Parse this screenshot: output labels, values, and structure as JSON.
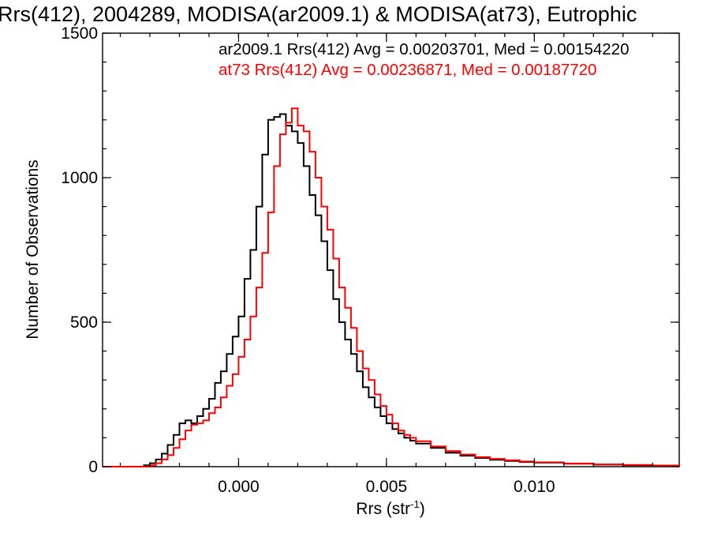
{
  "chart_data": {
    "type": "line",
    "title": "Rrs(412), 2004289, MODISA(ar2009.1) & MODISA(at73), Eutrophic",
    "xlabel": "Rrs (str",
    "xlabel_sup": "-1",
    "xlabel_suffix": ")",
    "ylabel": "Number of Observations",
    "xlim": [
      -0.0046,
      0.0149
    ],
    "ylim": [
      0,
      1500
    ],
    "x_ticks": [
      0.0,
      0.005,
      0.01
    ],
    "x_tick_labels": [
      "0.000",
      "0.005",
      "0.010"
    ],
    "x_minor_step": 0.001,
    "y_ticks": [
      0,
      500,
      1000,
      1500
    ],
    "y_tick_labels": [
      "0",
      "500",
      "1000",
      "1500"
    ],
    "y_minor_step": 100,
    "grid": false,
    "step": true,
    "annotations": [
      {
        "text": "ar2009.1 Rrs(412) Avg = 0.00203701, Med = 0.00154220",
        "color": "#000000"
      },
      {
        "text": "at73 Rrs(412) Avg = 0.00236871, Med = 0.00187720",
        "color": "#ff0000"
      }
    ],
    "series": [
      {
        "color": "#000000",
        "points": [
          [
            -0.0046,
            0
          ],
          [
            -0.0035,
            0
          ],
          [
            -0.0032,
            5
          ],
          [
            -0.003,
            12
          ],
          [
            -0.0028,
            25
          ],
          [
            -0.0026,
            45
          ],
          [
            -0.0024,
            75
          ],
          [
            -0.0022,
            110
          ],
          [
            -0.002,
            150
          ],
          [
            -0.0018,
            160
          ],
          [
            -0.0016,
            150
          ],
          [
            -0.0014,
            175
          ],
          [
            -0.0012,
            200
          ],
          [
            -0.001,
            235
          ],
          [
            -0.0008,
            290
          ],
          [
            -0.0006,
            330
          ],
          [
            -0.0004,
            390
          ],
          [
            -0.0002,
            450
          ],
          [
            0.0,
            520
          ],
          [
            0.0002,
            650
          ],
          [
            0.0004,
            750
          ],
          [
            0.0006,
            900
          ],
          [
            0.0008,
            1080
          ],
          [
            0.001,
            1200
          ],
          [
            0.0012,
            1210
          ],
          [
            0.0014,
            1220
          ],
          [
            0.0016,
            1180
          ],
          [
            0.0018,
            1160
          ],
          [
            0.002,
            1120
          ],
          [
            0.0022,
            1040
          ],
          [
            0.0024,
            940
          ],
          [
            0.0026,
            870
          ],
          [
            0.0028,
            780
          ],
          [
            0.003,
            680
          ],
          [
            0.0032,
            580
          ],
          [
            0.0034,
            500
          ],
          [
            0.0036,
            440
          ],
          [
            0.0038,
            390
          ],
          [
            0.004,
            330
          ],
          [
            0.0042,
            275
          ],
          [
            0.0044,
            240
          ],
          [
            0.0046,
            205
          ],
          [
            0.0048,
            175
          ],
          [
            0.005,
            150
          ],
          [
            0.0052,
            130
          ],
          [
            0.0054,
            115
          ],
          [
            0.0056,
            100
          ],
          [
            0.0058,
            90
          ],
          [
            0.006,
            80
          ],
          [
            0.0065,
            65
          ],
          [
            0.007,
            48
          ],
          [
            0.0075,
            38
          ],
          [
            0.008,
            30
          ],
          [
            0.0085,
            24
          ],
          [
            0.009,
            20
          ],
          [
            0.0095,
            16
          ],
          [
            0.01,
            14
          ],
          [
            0.011,
            10
          ],
          [
            0.012,
            7
          ],
          [
            0.013,
            5
          ],
          [
            0.014,
            3
          ],
          [
            0.0149,
            2
          ]
        ]
      },
      {
        "color": "#ff0000",
        "points": [
          [
            -0.0046,
            0
          ],
          [
            -0.0034,
            0
          ],
          [
            -0.003,
            5
          ],
          [
            -0.0028,
            12
          ],
          [
            -0.0026,
            25
          ],
          [
            -0.0024,
            40
          ],
          [
            -0.0022,
            65
          ],
          [
            -0.002,
            95
          ],
          [
            -0.0018,
            125
          ],
          [
            -0.0016,
            145
          ],
          [
            -0.0014,
            150
          ],
          [
            -0.0012,
            160
          ],
          [
            -0.001,
            185
          ],
          [
            -0.0008,
            205
          ],
          [
            -0.0006,
            240
          ],
          [
            -0.0004,
            280
          ],
          [
            -0.0002,
            320
          ],
          [
            0.0,
            380
          ],
          [
            0.0002,
            440
          ],
          [
            0.0004,
            520
          ],
          [
            0.0006,
            620
          ],
          [
            0.0008,
            740
          ],
          [
            0.001,
            880
          ],
          [
            0.0012,
            1040
          ],
          [
            0.0014,
            1150
          ],
          [
            0.0016,
            1190
          ],
          [
            0.0018,
            1240
          ],
          [
            0.002,
            1180
          ],
          [
            0.0022,
            1160
          ],
          [
            0.0024,
            1090
          ],
          [
            0.0026,
            1000
          ],
          [
            0.0028,
            900
          ],
          [
            0.003,
            820
          ],
          [
            0.0032,
            720
          ],
          [
            0.0034,
            620
          ],
          [
            0.0036,
            550
          ],
          [
            0.0038,
            480
          ],
          [
            0.004,
            400
          ],
          [
            0.0042,
            340
          ],
          [
            0.0044,
            300
          ],
          [
            0.0046,
            250
          ],
          [
            0.0048,
            210
          ],
          [
            0.005,
            180
          ],
          [
            0.0052,
            150
          ],
          [
            0.0054,
            125
          ],
          [
            0.0056,
            110
          ],
          [
            0.0058,
            100
          ],
          [
            0.006,
            88
          ],
          [
            0.0065,
            70
          ],
          [
            0.007,
            54
          ],
          [
            0.0075,
            42
          ],
          [
            0.008,
            33
          ],
          [
            0.0085,
            27
          ],
          [
            0.009,
            22
          ],
          [
            0.0095,
            18
          ],
          [
            0.01,
            15
          ],
          [
            0.011,
            11
          ],
          [
            0.012,
            8
          ],
          [
            0.013,
            6
          ],
          [
            0.014,
            4
          ],
          [
            0.0149,
            2
          ]
        ]
      }
    ]
  }
}
